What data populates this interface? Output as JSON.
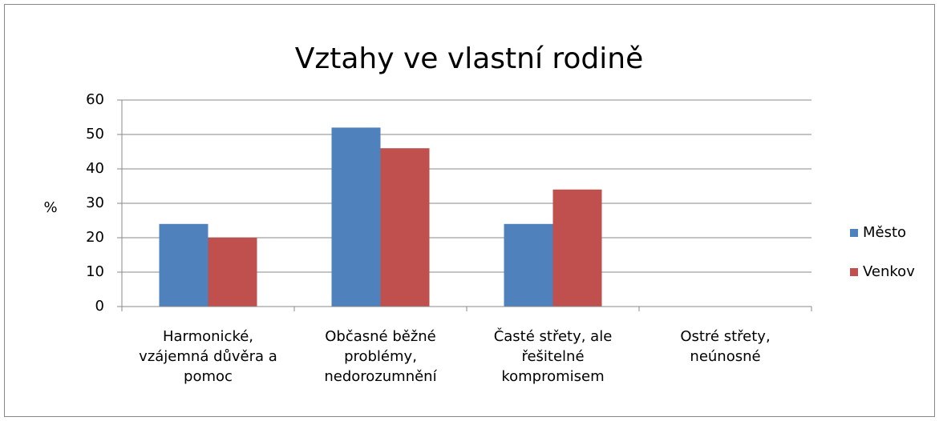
{
  "chart_data": {
    "type": "bar",
    "title": "Vztahy ve vlastní rodině",
    "y_label": "%",
    "categories": [
      "Harmonické, vzájemná důvěra a pomoc",
      "Občasné běžné problémy, nedorozumnění",
      "Časté střety, ale řešitelné kompromisem",
      "Ostré střety, neúnosné"
    ],
    "series": [
      {
        "name": "Město",
        "color": "#4f81bd",
        "values": [
          24,
          52,
          24,
          0
        ]
      },
      {
        "name": "Venkov",
        "color": "#c0504d",
        "values": [
          20,
          46,
          34,
          0
        ]
      }
    ],
    "ylim": [
      0,
      60
    ],
    "yticks": [
      0,
      10,
      20,
      30,
      40,
      50,
      60
    ],
    "grid": true,
    "legend": "right"
  }
}
